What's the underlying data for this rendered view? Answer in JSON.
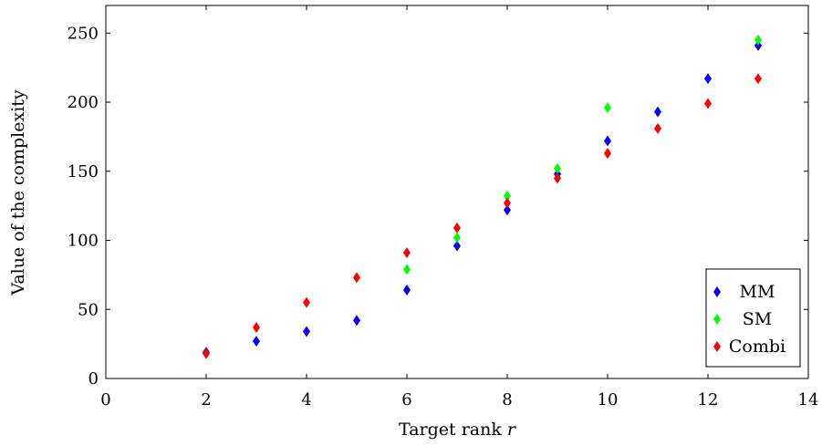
{
  "chart_data": {
    "type": "scatter",
    "title": "",
    "xlabel": "Target rank",
    "xlabel_var": "r",
    "ylabel": "Value of the complexity",
    "xlim": [
      0,
      14
    ],
    "ylim": [
      0,
      270
    ],
    "xticks": [
      0,
      2,
      4,
      6,
      8,
      10,
      12,
      14
    ],
    "yticks": [
      0,
      50,
      100,
      150,
      200,
      250
    ],
    "grid": false,
    "legend_position": "bottom-right",
    "marker": "diamond",
    "series": [
      {
        "name": "MM",
        "color": "#0000ff",
        "points": [
          [
            2,
            19
          ],
          [
            3,
            27
          ],
          [
            4,
            34
          ],
          [
            5,
            42
          ],
          [
            6,
            64
          ],
          [
            7,
            96
          ],
          [
            8,
            122
          ],
          [
            9,
            148
          ],
          [
            10,
            172
          ],
          [
            11,
            193
          ],
          [
            12,
            217
          ],
          [
            13,
            241
          ]
        ]
      },
      {
        "name": "SM",
        "color": "#00ff00",
        "points": [
          [
            6,
            79
          ],
          [
            7,
            102
          ],
          [
            8,
            132
          ],
          [
            9,
            152
          ],
          [
            10,
            196
          ],
          [
            13,
            245
          ]
        ]
      },
      {
        "name": "Combi",
        "color": "#ff0000",
        "points": [
          [
            2,
            18
          ],
          [
            3,
            37
          ],
          [
            4,
            55
          ],
          [
            5,
            73
          ],
          [
            6,
            91
          ],
          [
            7,
            109
          ],
          [
            8,
            127
          ],
          [
            9,
            145
          ],
          [
            10,
            163
          ],
          [
            11,
            181
          ],
          [
            12,
            199
          ],
          [
            13,
            217
          ]
        ]
      }
    ]
  }
}
